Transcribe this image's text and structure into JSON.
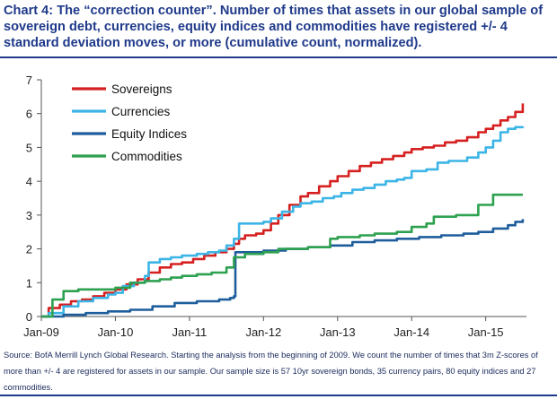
{
  "chart_data": {
    "type": "line",
    "title": "Chart 4: The “correction counter”. Number of times that assets in our global sample of sovereign debt, currencies, equity indices and commodities have registered +/- 4 standard deviation moves, or more (cumulative count, normalized).",
    "xlabel": "",
    "ylabel": "",
    "x_ticks": [
      "Jan-09",
      "Jan-10",
      "Jan-11",
      "Jan-12",
      "Jan-13",
      "Jan-14",
      "Jan-15"
    ],
    "y_ticks": [
      "0",
      "1",
      "2",
      "3",
      "4",
      "5",
      "6",
      "7"
    ],
    "xlim": [
      2009.0,
      2015.55
    ],
    "ylim": [
      0,
      7
    ],
    "legend_position": "top-left",
    "series": [
      {
        "name": "Sovereigns",
        "color": "#d62020",
        "x": [
          2009.0,
          2009.1,
          2009.25,
          2009.4,
          2009.55,
          2009.7,
          2009.85,
          2010.0,
          2010.15,
          2010.3,
          2010.45,
          2010.6,
          2010.75,
          2010.9,
          2011.05,
          2011.2,
          2011.35,
          2011.5,
          2011.6,
          2011.67,
          2011.75,
          2011.9,
          2012.0,
          2012.1,
          2012.2,
          2012.35,
          2012.5,
          2012.6,
          2012.75,
          2012.9,
          2013.0,
          2013.15,
          2013.3,
          2013.45,
          2013.6,
          2013.75,
          2013.9,
          2014.0,
          2014.15,
          2014.3,
          2014.45,
          2014.6,
          2014.75,
          2014.9,
          2015.0,
          2015.1,
          2015.2,
          2015.3,
          2015.4,
          2015.5
        ],
        "values": [
          0.0,
          0.25,
          0.35,
          0.45,
          0.5,
          0.6,
          0.7,
          0.8,
          0.95,
          1.1,
          1.3,
          1.45,
          1.55,
          1.6,
          1.7,
          1.8,
          1.9,
          2.0,
          2.15,
          2.3,
          2.4,
          2.45,
          2.55,
          2.75,
          3.0,
          3.3,
          3.55,
          3.65,
          3.85,
          4.0,
          4.15,
          4.3,
          4.45,
          4.55,
          4.65,
          4.75,
          4.85,
          4.95,
          5.0,
          5.05,
          5.15,
          5.2,
          5.3,
          5.45,
          5.55,
          5.65,
          5.8,
          5.9,
          6.05,
          6.3
        ]
      },
      {
        "name": "Currencies",
        "color": "#3cb5e6",
        "x": [
          2009.0,
          2009.1,
          2009.3,
          2009.5,
          2009.7,
          2009.9,
          2010.0,
          2010.1,
          2010.25,
          2010.4,
          2010.45,
          2010.6,
          2010.75,
          2010.9,
          2011.1,
          2011.25,
          2011.4,
          2011.5,
          2011.6,
          2011.67,
          2011.75,
          2011.9,
          2012.0,
          2012.1,
          2012.25,
          2012.4,
          2012.5,
          2012.65,
          2012.8,
          2012.95,
          2013.05,
          2013.2,
          2013.35,
          2013.5,
          2013.65,
          2013.8,
          2013.9,
          2014.0,
          2014.2,
          2014.35,
          2014.5,
          2014.6,
          2014.75,
          2014.9,
          2015.0,
          2015.1,
          2015.2,
          2015.3,
          2015.4,
          2015.5
        ],
        "values": [
          0.0,
          0.1,
          0.3,
          0.45,
          0.55,
          0.65,
          0.7,
          0.9,
          1.0,
          1.2,
          1.6,
          1.7,
          1.75,
          1.8,
          1.85,
          1.9,
          1.95,
          2.1,
          2.3,
          2.75,
          2.75,
          2.75,
          2.8,
          2.9,
          3.1,
          3.25,
          3.35,
          3.4,
          3.5,
          3.55,
          3.65,
          3.75,
          3.8,
          3.9,
          4.0,
          4.05,
          4.1,
          4.3,
          4.35,
          4.55,
          4.6,
          4.6,
          4.7,
          4.85,
          5.0,
          5.2,
          5.45,
          5.55,
          5.6,
          5.62
        ]
      },
      {
        "name": "Equity Indices",
        "color": "#1f5e9c",
        "x": [
          2009.0,
          2009.3,
          2009.6,
          2009.9,
          2010.2,
          2010.5,
          2010.8,
          2011.1,
          2011.4,
          2011.55,
          2011.6,
          2011.62,
          2011.8,
          2012.0,
          2012.3,
          2012.6,
          2012.9,
          2013.2,
          2013.5,
          2013.8,
          2014.1,
          2014.4,
          2014.7,
          2014.9,
          2015.1,
          2015.3,
          2015.4,
          2015.5
        ],
        "values": [
          0.0,
          0.05,
          0.1,
          0.15,
          0.2,
          0.3,
          0.4,
          0.45,
          0.5,
          0.55,
          0.6,
          1.9,
          1.9,
          1.95,
          2.0,
          2.05,
          2.1,
          2.2,
          2.25,
          2.3,
          2.35,
          2.4,
          2.45,
          2.5,
          2.6,
          2.7,
          2.8,
          2.88
        ]
      },
      {
        "name": "Commodities",
        "color": "#2ea150",
        "x": [
          2009.0,
          2009.15,
          2009.3,
          2009.5,
          2009.75,
          2010.0,
          2010.2,
          2010.4,
          2010.6,
          2010.75,
          2010.9,
          2011.1,
          2011.3,
          2011.5,
          2011.6,
          2011.75,
          2012.0,
          2012.2,
          2012.3,
          2012.6,
          2012.9,
          2013.0,
          2013.3,
          2013.5,
          2013.8,
          2014.0,
          2014.2,
          2014.3,
          2014.6,
          2014.8,
          2014.9,
          2015.1,
          2015.3,
          2015.5
        ],
        "values": [
          0.0,
          0.5,
          0.75,
          0.8,
          0.8,
          0.85,
          1.0,
          1.05,
          1.1,
          1.15,
          1.2,
          1.25,
          1.3,
          1.45,
          1.75,
          1.85,
          1.9,
          2.0,
          2.0,
          2.05,
          2.3,
          2.35,
          2.4,
          2.45,
          2.5,
          2.65,
          2.75,
          2.95,
          3.0,
          3.0,
          3.3,
          3.6,
          3.6,
          3.6
        ]
      }
    ],
    "source": "Source: BofA Merrill Lynch Global Research. Starting the analysis from the beginning of 2009. We count the number of times that 3m Z-scores of more than +/- 4 are registered for assets in our sample. Our sample size is 57 10yr sovereign bonds, 35 currency pairs, 80 equity indices and 27 commodities."
  }
}
